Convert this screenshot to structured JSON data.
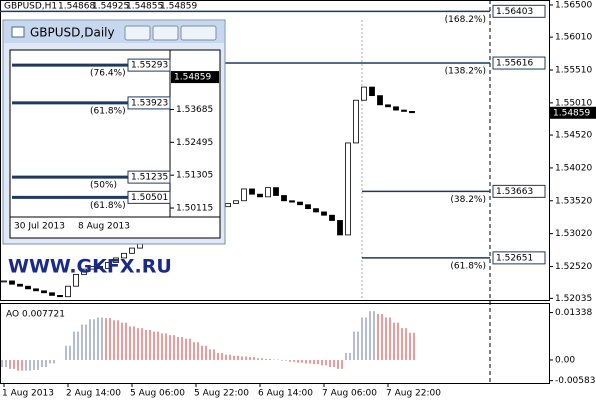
{
  "header": {
    "symbol": "GBPUSD,H1",
    "values": [
      1.54868,
      1.54925,
      1.54855,
      1.54859
    ]
  },
  "watermark": "WWW.GKFX.RU",
  "main": {
    "ylim": [
      1.5201,
      1.5656
    ],
    "yticks": [
      {
        "value": 1.565,
        "label": "1.56500"
      },
      {
        "value": 1.5601,
        "label": "1.56010"
      },
      {
        "value": 1.5551,
        "label": "1.55510"
      },
      {
        "value": 1.5501,
        "label": "1.55010"
      },
      {
        "value": 1.5452,
        "label": "1.54520"
      },
      {
        "value": 1.5402,
        "label": "1.54020"
      },
      {
        "value": 1.5352,
        "label": "1.53520"
      },
      {
        "value": 1.5302,
        "label": "1.53020"
      },
      {
        "value": 1.5252,
        "label": "1.52520"
      },
      1.52035
    ],
    "categories": [
      "1 Aug 2013",
      null,
      null,
      null,
      null,
      null,
      null,
      null,
      "2 Aug 14:00",
      null,
      null,
      null,
      null,
      null,
      null,
      null,
      "5 Aug 06:00",
      null,
      null,
      null,
      null,
      null,
      null,
      null,
      "5 Aug 22:00",
      null,
      null,
      null,
      null,
      null,
      null,
      null,
      "6 Aug 14:00",
      null,
      null,
      null,
      null,
      null,
      null,
      null,
      "7 Aug 06:00",
      null,
      null,
      null,
      null,
      null,
      null,
      null,
      "7 Aug 22:00",
      null,
      null,
      null
    ],
    "values": [
      1.523,
      1.5225,
      1.5222,
      1.5218,
      1.5215,
      1.5212,
      1.5208,
      1.5206,
      1.5222,
      1.524,
      1.5248,
      1.5252,
      1.5249,
      1.5258,
      1.5265,
      1.5272,
      1.528,
      1.5288,
      1.5296,
      1.5305,
      1.5312,
      1.532,
      1.5328,
      1.5335,
      1.534,
      1.5342,
      1.5338,
      1.5343,
      1.5348,
      1.5352,
      1.537,
      1.5362,
      1.5358,
      1.5372,
      1.536,
      1.5352,
      1.535,
      1.5346,
      1.534,
      1.5335,
      1.533,
      1.5322,
      1.53,
      1.544,
      1.5505,
      1.5525,
      1.5512,
      1.5498,
      1.5495,
      1.549,
      1.5488,
      1.5486
    ],
    "fib_levels": [
      {
        "value": 1.56403,
        "label": "(168.2%)"
      },
      {
        "value": 1.55616,
        "label": "(138.2%)"
      },
      {
        "value": 1.53663,
        "label": "(38.2%)"
      },
      {
        "value": 1.52651,
        "label": "(61.8%)"
      }
    ],
    "current_price": 1.54859,
    "level_color": "#1f3864"
  },
  "ao": {
    "name": "AO",
    "value": 0.007721,
    "ylim": [
      -0.0065,
      0.0158
    ],
    "yticks": [
      0.01338,
      {
        "value": 0,
        "label": "0.00"
      },
      -0.005835
    ],
    "up_color": "#6a7ab0",
    "down_color": "#d23c3c",
    "values": [
      -0.002,
      -0.0025,
      -0.003,
      -0.003,
      -0.0028,
      -0.002,
      -0.001,
      0.0,
      0.004,
      0.008,
      0.01,
      0.0115,
      0.012,
      0.0118,
      0.0112,
      0.0105,
      0.0095,
      0.009,
      0.0085,
      0.008,
      0.0075,
      0.007,
      0.0065,
      0.006,
      0.005,
      0.004,
      0.003,
      0.002,
      0.0015,
      0.0012,
      0.001,
      0.0008,
      0.0005,
      0.0003,
      0.0001,
      -0.0002,
      -0.0005,
      -0.0008,
      -0.001,
      -0.0012,
      -0.0015,
      -0.002,
      -0.0025,
      0.002,
      0.008,
      0.012,
      0.0138,
      0.013,
      0.012,
      0.0105,
      0.009,
      0.0077
    ]
  },
  "inset": {
    "title": "GBPUSD,Daily",
    "ylim": [
      1.4979,
      1.5584
    ],
    "yticks": [
      1.53685,
      1.52495,
      1.51305,
      1.50115
    ],
    "levels": [
      {
        "value": 1.55293,
        "label": "(76.4%)"
      },
      {
        "value": 1.53923,
        "label": "(61.8%)"
      },
      {
        "value": 1.51235,
        "label": "(50%)"
      },
      {
        "value": 1.50501,
        "label": "(61.8%)"
      }
    ],
    "current_price": 1.54859,
    "dates": [
      "30 Jul 2013",
      "8 Aug 2013"
    ]
  }
}
